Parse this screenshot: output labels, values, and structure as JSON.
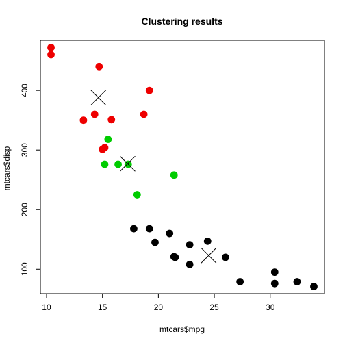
{
  "chart_data": {
    "type": "scatter",
    "title": "Clustering results",
    "xlabel": "mtcars$mpg",
    "ylabel": "mtcars$disp",
    "xlim": [
      9.45,
      34.85
    ],
    "ylim": [
      58.96,
      484.04
    ],
    "xticks": [
      10,
      15,
      20,
      25,
      30
    ],
    "yticks": [
      100,
      200,
      300,
      400
    ],
    "grid": false,
    "legend": "none",
    "series": [
      {
        "color": "#ee0000",
        "points": [
          [
            10.4,
            472
          ],
          [
            10.4,
            460
          ],
          [
            14.7,
            440
          ],
          [
            19.2,
            400
          ],
          [
            14.3,
            360
          ],
          [
            18.7,
            360
          ],
          [
            13.3,
            350
          ],
          [
            15.8,
            351
          ],
          [
            15.0,
            301
          ],
          [
            15.2,
            304
          ]
        ]
      },
      {
        "color": "#00cc00",
        "points": [
          [
            15.5,
            318
          ],
          [
            15.2,
            276
          ],
          [
            16.4,
            276
          ],
          [
            17.3,
            276
          ],
          [
            21.4,
            258
          ],
          [
            18.1,
            225
          ]
        ]
      },
      {
        "color": "#000000",
        "points": [
          [
            17.8,
            168
          ],
          [
            19.2,
            168
          ],
          [
            21.0,
            160
          ],
          [
            19.7,
            145
          ],
          [
            21.4,
            121
          ],
          [
            21.5,
            120
          ],
          [
            22.8,
            141
          ],
          [
            22.8,
            108
          ],
          [
            24.4,
            147
          ],
          [
            26.0,
            120
          ],
          [
            27.3,
            79
          ],
          [
            30.4,
            95
          ],
          [
            30.4,
            76
          ],
          [
            32.4,
            79
          ],
          [
            33.9,
            71
          ]
        ]
      }
    ],
    "centers": [
      {
        "x": 14.64,
        "y": 388
      },
      {
        "x": 17.25,
        "y": 277
      },
      {
        "x": 24.5,
        "y": 123
      }
    ]
  }
}
